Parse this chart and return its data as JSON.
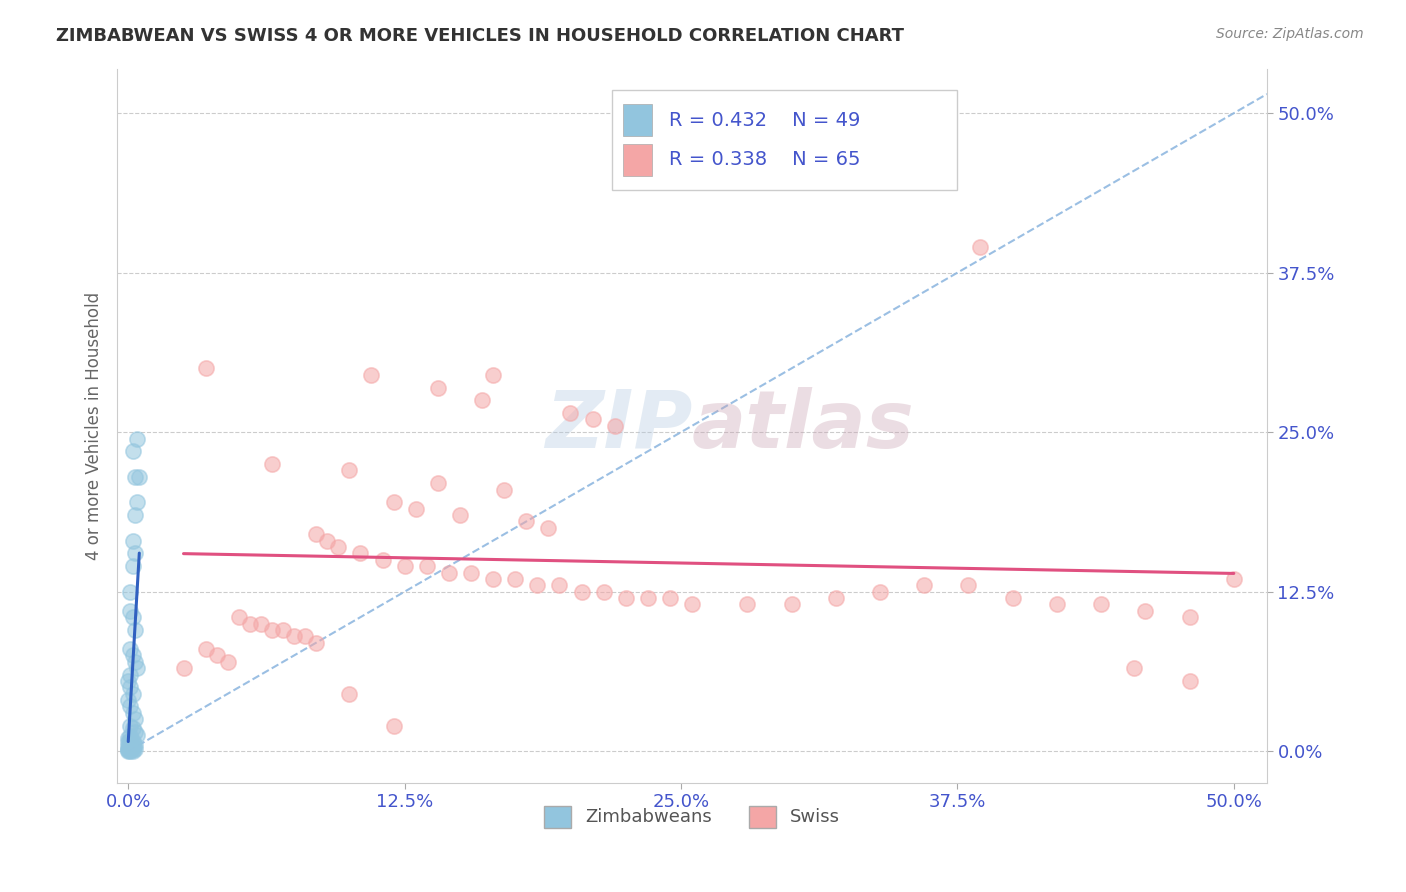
{
  "title": "ZIMBABWEAN VS SWISS 4 OR MORE VEHICLES IN HOUSEHOLD CORRELATION CHART",
  "source_text": "Source: ZipAtlas.com",
  "ylabel": "4 or more Vehicles in Household",
  "xticklabels": [
    "0.0%",
    "12.5%",
    "25.0%",
    "37.5%",
    "50.0%"
  ],
  "xtick_vals": [
    0.0,
    0.125,
    0.25,
    0.375,
    0.5
  ],
  "yticklabels": [
    "0.0%",
    "12.5%",
    "25.0%",
    "37.5%",
    "50.0%"
  ],
  "ytick_vals": [
    0.0,
    0.125,
    0.25,
    0.375,
    0.5
  ],
  "xlim": [
    -0.005,
    0.515
  ],
  "ylim": [
    -0.025,
    0.535
  ],
  "legend_r1": "R = 0.432",
  "legend_n1": "N = 49",
  "legend_r2": "R = 0.338",
  "legend_n2": "N = 65",
  "zimbabwean_color": "#92c5de",
  "swiss_color": "#f4a6a6",
  "trendline_zim_color": "#3060c0",
  "trendline_swiss_color": "#e05080",
  "diagonal_color": "#90b8e0",
  "grid_color": "#cccccc",
  "title_color": "#333333",
  "r_n_color": "#4455cc",
  "tick_color": "#4455cc",
  "watermark_color": "#c8d8e8",
  "zimbabwean_points": [
    [
      0.002,
      0.235
    ],
    [
      0.003,
      0.215
    ],
    [
      0.004,
      0.245
    ],
    [
      0.005,
      0.215
    ],
    [
      0.003,
      0.185
    ],
    [
      0.004,
      0.195
    ],
    [
      0.002,
      0.165
    ],
    [
      0.003,
      0.155
    ],
    [
      0.002,
      0.145
    ],
    [
      0.001,
      0.125
    ],
    [
      0.001,
      0.11
    ],
    [
      0.002,
      0.105
    ],
    [
      0.003,
      0.095
    ],
    [
      0.001,
      0.08
    ],
    [
      0.002,
      0.075
    ],
    [
      0.003,
      0.07
    ],
    [
      0.004,
      0.065
    ],
    [
      0.001,
      0.06
    ],
    [
      0.0,
      0.055
    ],
    [
      0.001,
      0.05
    ],
    [
      0.002,
      0.045
    ],
    [
      0.0,
      0.04
    ],
    [
      0.001,
      0.035
    ],
    [
      0.002,
      0.03
    ],
    [
      0.003,
      0.025
    ],
    [
      0.001,
      0.02
    ],
    [
      0.002,
      0.018
    ],
    [
      0.003,
      0.015
    ],
    [
      0.004,
      0.013
    ],
    [
      0.001,
      0.012
    ],
    [
      0.0,
      0.01
    ],
    [
      0.001,
      0.009
    ],
    [
      0.002,
      0.008
    ],
    [
      0.0,
      0.007
    ],
    [
      0.001,
      0.006
    ],
    [
      0.002,
      0.005
    ],
    [
      0.003,
      0.005
    ],
    [
      0.0,
      0.004
    ],
    [
      0.001,
      0.003
    ],
    [
      0.002,
      0.003
    ],
    [
      0.0,
      0.002
    ],
    [
      0.001,
      0.002
    ],
    [
      0.002,
      0.002
    ],
    [
      0.003,
      0.002
    ],
    [
      0.0,
      0.001
    ],
    [
      0.001,
      0.001
    ],
    [
      0.0,
      0.0
    ],
    [
      0.001,
      0.0
    ],
    [
      0.002,
      0.0
    ]
  ],
  "swiss_points": [
    [
      0.035,
      0.3
    ],
    [
      0.11,
      0.295
    ],
    [
      0.385,
      0.395
    ],
    [
      0.14,
      0.285
    ],
    [
      0.16,
      0.275
    ],
    [
      0.2,
      0.265
    ],
    [
      0.21,
      0.26
    ],
    [
      0.22,
      0.255
    ],
    [
      0.165,
      0.295
    ],
    [
      0.065,
      0.225
    ],
    [
      0.1,
      0.22
    ],
    [
      0.14,
      0.21
    ],
    [
      0.17,
      0.205
    ],
    [
      0.12,
      0.195
    ],
    [
      0.13,
      0.19
    ],
    [
      0.15,
      0.185
    ],
    [
      0.18,
      0.18
    ],
    [
      0.19,
      0.175
    ],
    [
      0.085,
      0.17
    ],
    [
      0.09,
      0.165
    ],
    [
      0.095,
      0.16
    ],
    [
      0.105,
      0.155
    ],
    [
      0.115,
      0.15
    ],
    [
      0.125,
      0.145
    ],
    [
      0.135,
      0.145
    ],
    [
      0.145,
      0.14
    ],
    [
      0.155,
      0.14
    ],
    [
      0.165,
      0.135
    ],
    [
      0.175,
      0.135
    ],
    [
      0.185,
      0.13
    ],
    [
      0.195,
      0.13
    ],
    [
      0.205,
      0.125
    ],
    [
      0.215,
      0.125
    ],
    [
      0.225,
      0.12
    ],
    [
      0.235,
      0.12
    ],
    [
      0.245,
      0.12
    ],
    [
      0.255,
      0.115
    ],
    [
      0.28,
      0.115
    ],
    [
      0.3,
      0.115
    ],
    [
      0.32,
      0.12
    ],
    [
      0.34,
      0.125
    ],
    [
      0.36,
      0.13
    ],
    [
      0.38,
      0.13
    ],
    [
      0.4,
      0.12
    ],
    [
      0.42,
      0.115
    ],
    [
      0.44,
      0.115
    ],
    [
      0.46,
      0.11
    ],
    [
      0.48,
      0.105
    ],
    [
      0.05,
      0.105
    ],
    [
      0.055,
      0.1
    ],
    [
      0.06,
      0.1
    ],
    [
      0.065,
      0.095
    ],
    [
      0.07,
      0.095
    ],
    [
      0.075,
      0.09
    ],
    [
      0.08,
      0.09
    ],
    [
      0.085,
      0.085
    ],
    [
      0.035,
      0.08
    ],
    [
      0.04,
      0.075
    ],
    [
      0.045,
      0.07
    ],
    [
      0.5,
      0.135
    ],
    [
      0.025,
      0.065
    ],
    [
      0.455,
      0.065
    ],
    [
      0.48,
      0.055
    ],
    [
      0.1,
      0.045
    ],
    [
      0.12,
      0.02
    ]
  ]
}
